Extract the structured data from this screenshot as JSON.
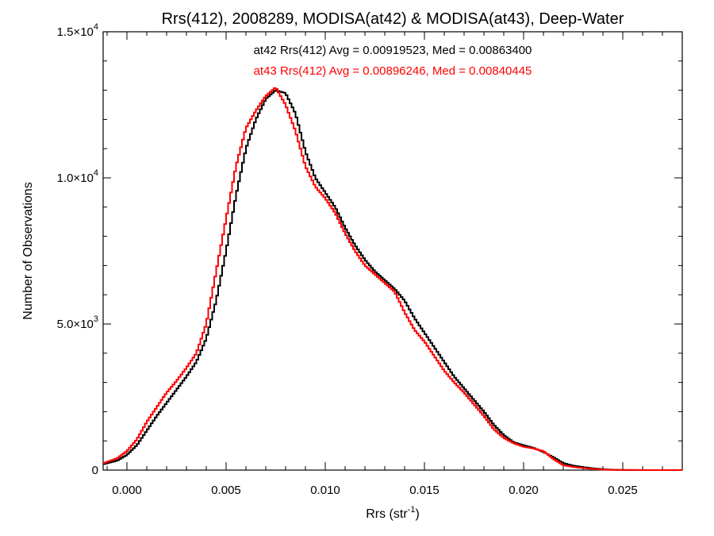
{
  "chart_data": {
    "type": "line",
    "title": "Rrs(412), 2008289, MODISA(at42) & MODISA(at43), Deep-Water",
    "xlabel": {
      "base": "Rrs (str",
      "sup": "-1",
      "close": ")"
    },
    "ylabel": "Number of Observations",
    "xlim": [
      -0.0012,
      0.028
    ],
    "ylim": [
      0,
      15000
    ],
    "x_ticks": [
      0.0,
      0.005,
      0.01,
      0.015,
      0.02,
      0.025
    ],
    "x_tick_labels": [
      "0.000",
      "0.005",
      "0.010",
      "0.015",
      "0.020",
      "0.025"
    ],
    "y_ticks": [
      {
        "value": 0,
        "mant": "0",
        "exp": ""
      },
      {
        "value": 5000,
        "mant": "5.0×10",
        "exp": "3"
      },
      {
        "value": 10000,
        "mant": "1.0×10",
        "exp": "4"
      },
      {
        "value": 15000,
        "mant": "1.5×10",
        "exp": "4"
      }
    ],
    "annotations": [
      {
        "text": "at42 Rrs(412) Avg = 0.00919523, Med = 0.00863400",
        "color": "#000000"
      },
      {
        "text": "at43 Rrs(412) Avg = 0.00896246, Med = 0.00840445",
        "color": "#ff0000"
      }
    ],
    "series": [
      {
        "name": "at42",
        "color": "#000000",
        "step": "histogram",
        "points": [
          [
            -0.0012,
            200
          ],
          [
            -0.0005,
            320
          ],
          [
            0.0,
            520
          ],
          [
            0.0005,
            850
          ],
          [
            0.001,
            1350
          ],
          [
            0.0015,
            1850
          ],
          [
            0.002,
            2300
          ],
          [
            0.0025,
            2750
          ],
          [
            0.003,
            3200
          ],
          [
            0.0035,
            3700
          ],
          [
            0.004,
            4500
          ],
          [
            0.0045,
            5800
          ],
          [
            0.005,
            7500
          ],
          [
            0.0055,
            9400
          ],
          [
            0.006,
            11000
          ],
          [
            0.0065,
            12000
          ],
          [
            0.007,
            12700
          ],
          [
            0.0075,
            13000
          ],
          [
            0.008,
            12900
          ],
          [
            0.0085,
            12200
          ],
          [
            0.009,
            10900
          ],
          [
            0.0095,
            10000
          ],
          [
            0.01,
            9500
          ],
          [
            0.0105,
            9000
          ],
          [
            0.011,
            8300
          ],
          [
            0.0115,
            7700
          ],
          [
            0.012,
            7200
          ],
          [
            0.0125,
            6800
          ],
          [
            0.013,
            6500
          ],
          [
            0.0135,
            6200
          ],
          [
            0.014,
            5800
          ],
          [
            0.0145,
            5200
          ],
          [
            0.015,
            4700
          ],
          [
            0.0155,
            4200
          ],
          [
            0.016,
            3700
          ],
          [
            0.0165,
            3200
          ],
          [
            0.017,
            2800
          ],
          [
            0.0175,
            2400
          ],
          [
            0.018,
            2000
          ],
          [
            0.0185,
            1550
          ],
          [
            0.019,
            1200
          ],
          [
            0.0195,
            950
          ],
          [
            0.02,
            850
          ],
          [
            0.0205,
            760
          ],
          [
            0.021,
            620
          ],
          [
            0.0215,
            440
          ],
          [
            0.022,
            240
          ],
          [
            0.0225,
            150
          ],
          [
            0.023,
            100
          ],
          [
            0.0235,
            60
          ],
          [
            0.024,
            30
          ],
          [
            0.0245,
            12
          ],
          [
            0.025,
            5
          ],
          [
            0.026,
            2
          ],
          [
            0.027,
            0
          ],
          [
            0.028,
            0
          ]
        ]
      },
      {
        "name": "at43",
        "color": "#ff0000",
        "step": "histogram",
        "points": [
          [
            -0.0012,
            230
          ],
          [
            -0.0005,
            400
          ],
          [
            0.0,
            650
          ],
          [
            0.0005,
            1050
          ],
          [
            0.001,
            1650
          ],
          [
            0.0015,
            2150
          ],
          [
            0.002,
            2650
          ],
          [
            0.0025,
            3050
          ],
          [
            0.003,
            3500
          ],
          [
            0.0035,
            4000
          ],
          [
            0.004,
            5000
          ],
          [
            0.0045,
            6800
          ],
          [
            0.005,
            8600
          ],
          [
            0.0055,
            10400
          ],
          [
            0.006,
            11700
          ],
          [
            0.0065,
            12300
          ],
          [
            0.007,
            12800
          ],
          [
            0.0075,
            13100
          ],
          [
            0.008,
            12500
          ],
          [
            0.0085,
            11600
          ],
          [
            0.009,
            10400
          ],
          [
            0.0095,
            9700
          ],
          [
            0.01,
            9300
          ],
          [
            0.0105,
            8800
          ],
          [
            0.011,
            8100
          ],
          [
            0.0115,
            7500
          ],
          [
            0.012,
            7000
          ],
          [
            0.0125,
            6700
          ],
          [
            0.013,
            6400
          ],
          [
            0.0135,
            6100
          ],
          [
            0.014,
            5400
          ],
          [
            0.0145,
            4800
          ],
          [
            0.015,
            4400
          ],
          [
            0.0155,
            3900
          ],
          [
            0.016,
            3400
          ],
          [
            0.0165,
            3000
          ],
          [
            0.017,
            2650
          ],
          [
            0.0175,
            2250
          ],
          [
            0.018,
            1850
          ],
          [
            0.0185,
            1400
          ],
          [
            0.019,
            1100
          ],
          [
            0.0195,
            920
          ],
          [
            0.02,
            800
          ],
          [
            0.0205,
            740
          ],
          [
            0.021,
            650
          ],
          [
            0.0215,
            380
          ],
          [
            0.022,
            170
          ],
          [
            0.0225,
            110
          ],
          [
            0.023,
            70
          ],
          [
            0.0235,
            40
          ],
          [
            0.024,
            20
          ],
          [
            0.0245,
            8
          ],
          [
            0.025,
            3
          ],
          [
            0.026,
            1
          ],
          [
            0.027,
            0
          ],
          [
            0.028,
            0
          ]
        ]
      }
    ],
    "grid": false,
    "legend": "none"
  }
}
